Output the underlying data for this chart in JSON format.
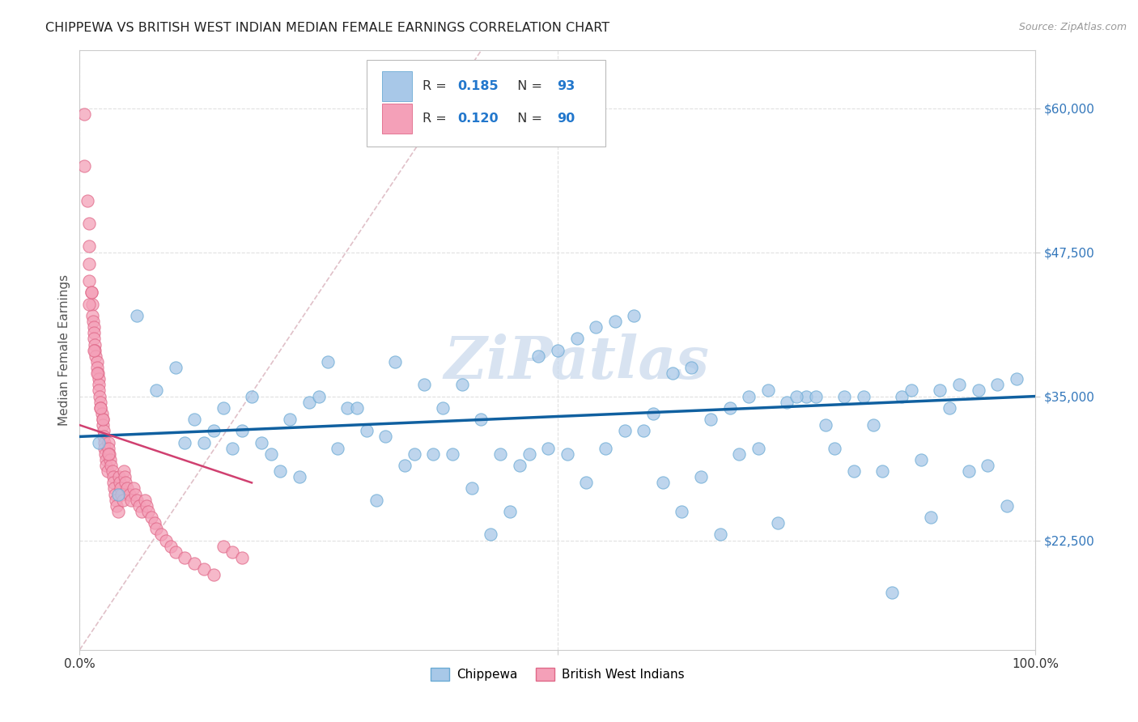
{
  "title": "CHIPPEWA VS BRITISH WEST INDIAN MEDIAN FEMALE EARNINGS CORRELATION CHART",
  "source": "Source: ZipAtlas.com",
  "ylabel": "Median Female Earnings",
  "xlim": [
    0,
    1
  ],
  "ylim": [
    13000,
    65000
  ],
  "yticks": [
    22500,
    35000,
    47500,
    60000
  ],
  "ytick_labels": [
    "$22,500",
    "$35,000",
    "$47,500",
    "$60,000"
  ],
  "color_blue": "#a8c8e8",
  "color_blue_edge": "#6aaad4",
  "color_pink": "#f4a0b8",
  "color_pink_edge": "#e06888",
  "trend_blue": "#1060a0",
  "trend_pink": "#d04070",
  "ref_line_color": "#e0c0c8",
  "background": "#ffffff",
  "grid_color": "#e0e0e0",
  "watermark_color": "#c8d8ec",
  "chippewa_x": [
    0.02,
    0.06,
    0.1,
    0.12,
    0.14,
    0.16,
    0.18,
    0.2,
    0.22,
    0.24,
    0.26,
    0.28,
    0.3,
    0.32,
    0.34,
    0.36,
    0.38,
    0.4,
    0.42,
    0.44,
    0.46,
    0.48,
    0.5,
    0.52,
    0.54,
    0.56,
    0.58,
    0.6,
    0.62,
    0.64,
    0.66,
    0.68,
    0.7,
    0.72,
    0.74,
    0.76,
    0.78,
    0.8,
    0.82,
    0.84,
    0.86,
    0.88,
    0.9,
    0.92,
    0.94,
    0.96,
    0.98,
    0.04,
    0.08,
    0.11,
    0.13,
    0.15,
    0.17,
    0.19,
    0.21,
    0.23,
    0.25,
    0.27,
    0.29,
    0.31,
    0.33,
    0.35,
    0.37,
    0.39,
    0.41,
    0.43,
    0.45,
    0.47,
    0.49,
    0.51,
    0.53,
    0.55,
    0.57,
    0.59,
    0.61,
    0.63,
    0.65,
    0.67,
    0.69,
    0.71,
    0.73,
    0.75,
    0.77,
    0.79,
    0.81,
    0.83,
    0.85,
    0.87,
    0.89,
    0.91,
    0.93,
    0.95,
    0.97
  ],
  "chippewa_y": [
    31000,
    42000,
    37500,
    33000,
    32000,
    30500,
    35000,
    30000,
    33000,
    34500,
    38000,
    34000,
    32000,
    31500,
    29000,
    36000,
    34000,
    36000,
    33000,
    30000,
    29000,
    38500,
    39000,
    40000,
    41000,
    41500,
    42000,
    33500,
    37000,
    37500,
    33000,
    34000,
    35000,
    35500,
    34500,
    35000,
    32500,
    35000,
    35000,
    28500,
    35000,
    29500,
    35500,
    36000,
    35500,
    36000,
    36500,
    26500,
    35500,
    31000,
    31000,
    34000,
    32000,
    31000,
    28500,
    28000,
    35000,
    30500,
    34000,
    26000,
    38000,
    30000,
    30000,
    30000,
    27000,
    23000,
    25000,
    30000,
    30500,
    30000,
    27500,
    30500,
    32000,
    32000,
    27500,
    25000,
    28000,
    23000,
    30000,
    30500,
    24000,
    35000,
    35000,
    30500,
    28500,
    32500,
    18000,
    35500,
    24500,
    34000,
    28500,
    29000,
    25500
  ],
  "bwi_x": [
    0.005,
    0.005,
    0.008,
    0.01,
    0.01,
    0.01,
    0.01,
    0.012,
    0.013,
    0.013,
    0.014,
    0.015,
    0.015,
    0.015,
    0.016,
    0.016,
    0.017,
    0.018,
    0.018,
    0.019,
    0.02,
    0.02,
    0.02,
    0.021,
    0.022,
    0.022,
    0.023,
    0.024,
    0.024,
    0.025,
    0.025,
    0.026,
    0.026,
    0.027,
    0.028,
    0.028,
    0.029,
    0.03,
    0.03,
    0.031,
    0.032,
    0.033,
    0.034,
    0.035,
    0.035,
    0.036,
    0.037,
    0.038,
    0.039,
    0.04,
    0.041,
    0.042,
    0.043,
    0.044,
    0.045,
    0.046,
    0.047,
    0.048,
    0.05,
    0.052,
    0.054,
    0.056,
    0.058,
    0.06,
    0.062,
    0.065,
    0.068,
    0.07,
    0.072,
    0.075,
    0.078,
    0.08,
    0.085,
    0.09,
    0.095,
    0.1,
    0.11,
    0.12,
    0.13,
    0.14,
    0.15,
    0.16,
    0.17,
    0.01,
    0.012,
    0.018,
    0.024,
    0.03,
    0.022,
    0.015
  ],
  "bwi_y": [
    59500,
    55000,
    52000,
    50000,
    48000,
    46500,
    45000,
    44000,
    43000,
    42000,
    41500,
    41000,
    40500,
    40000,
    39500,
    39000,
    38500,
    38000,
    37500,
    37000,
    36500,
    36000,
    35500,
    35000,
    34500,
    34000,
    33500,
    33000,
    32500,
    32000,
    31500,
    31000,
    30500,
    30000,
    29500,
    29000,
    28500,
    31000,
    30500,
    30000,
    29500,
    29000,
    28500,
    28000,
    27500,
    27000,
    26500,
    26000,
    25500,
    25000,
    28000,
    27500,
    27000,
    26500,
    26000,
    28500,
    28000,
    27500,
    27000,
    26500,
    26000,
    27000,
    26500,
    26000,
    25500,
    25000,
    26000,
    25500,
    25000,
    24500,
    24000,
    23500,
    23000,
    22500,
    22000,
    21500,
    21000,
    20500,
    20000,
    19500,
    22000,
    21500,
    21000,
    43000,
    44000,
    37000,
    33000,
    30000,
    34000,
    39000
  ]
}
